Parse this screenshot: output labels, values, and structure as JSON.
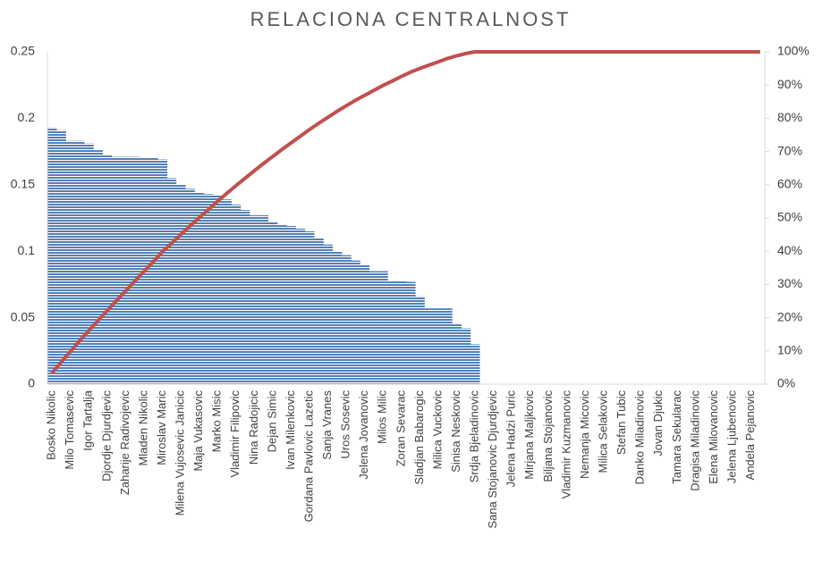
{
  "chart_data": {
    "type": "pareto",
    "title": "RELACIONA CENTRALNOST",
    "categories": [
      "Bosko Nikolic",
      null,
      "Milo Tomasevic",
      null,
      "Igor Tartalja",
      null,
      "Djordje Djurdjevic",
      null,
      "Zaharije Radivojevic",
      null,
      "Mladen Nikolic",
      null,
      "Miroslav Maric",
      null,
      "Milena Vujosevic Janicic",
      null,
      "Maja Vukasovic",
      null,
      "Marko Misic",
      null,
      "Vladimir Filipovic",
      null,
      "Nina Radojicic",
      null,
      "Dejan Simic",
      null,
      "Ivan Milenkovic",
      null,
      "Gordana Pavlovic Lazetic",
      null,
      "Sanja Vranes",
      null,
      "Uros Sosevic",
      null,
      "Jelena Jovanovic",
      null,
      "Milos Milic",
      null,
      "Zoran Sevarac",
      null,
      "Sladjan Babarogic",
      null,
      "Milica Vuckovic",
      null,
      "Sinisa Neskovic",
      null,
      "Srdja Bjeladinovic",
      null,
      "Sana Stojanovic Djurdjevic",
      null,
      "Jelena Hadzi Puric",
      null,
      "Mirjana Maljkovic",
      null,
      "Biljana Stojanovic",
      null,
      "Vladimir Kuzmanovic",
      null,
      "Nemanja Micovic",
      null,
      "Milica Selakovic",
      null,
      "Stefan Tubic",
      null,
      "Danko Miladinovic",
      null,
      "Jovan Djukic",
      null,
      "Tamara Sekularac",
      null,
      "Dragisa Miladinovic",
      null,
      "Elena Milovanovic",
      null,
      "Jelena Ljubenovic",
      null,
      "Andela Pejanovic",
      null
    ],
    "series": [
      {
        "color": "#4f81bd",
        "values": [
          0.193,
          0.191,
          0.183,
          0.183,
          0.181,
          0.176,
          0.172,
          0.171,
          0.171,
          0.171,
          0.17,
          0.17,
          0.169,
          0.155,
          0.15,
          0.147,
          0.144,
          0.143,
          0.142,
          0.139,
          0.135,
          0.131,
          0.127,
          0.127,
          0.122,
          0.12,
          0.119,
          0.117,
          0.115,
          0.11,
          0.105,
          0.1,
          0.097,
          0.093,
          0.09,
          0.085,
          0.085,
          0.078,
          0.078,
          0.077,
          0.066,
          0.057,
          0.057,
          0.057,
          0.045,
          0.042,
          0.03,
          0,
          0,
          0,
          0,
          0,
          0,
          0,
          0,
          0,
          0,
          0,
          0,
          0,
          0,
          0,
          0,
          0,
          0,
          0,
          0,
          0,
          0,
          0,
          0,
          0,
          0,
          0,
          0,
          0,
          0,
          0
        ]
      },
      {
        "color": "#c0504d",
        "axis": "y2",
        "values": [
          3.3,
          6.6,
          9.8,
          13.0,
          16.1,
          19.1,
          22.1,
          25.1,
          28.0,
          31.0,
          33.9,
          36.8,
          39.8,
          42.4,
          45.0,
          47.6,
          50.1,
          52.5,
          55.0,
          57.4,
          59.7,
          62.0,
          64.2,
          66.4,
          68.5,
          70.6,
          72.6,
          74.6,
          76.6,
          78.5,
          80.3,
          82.1,
          83.8,
          85.4,
          86.9,
          88.4,
          89.9,
          91.2,
          92.6,
          93.9,
          95.0,
          96.0,
          97.0,
          98.0,
          98.8,
          99.5,
          100,
          100,
          100,
          100,
          100,
          100,
          100,
          100,
          100,
          100,
          100,
          100,
          100,
          100,
          100,
          100,
          100,
          100,
          100,
          100,
          100,
          100,
          100,
          100,
          100,
          100,
          100,
          100,
          100,
          100,
          100,
          100
        ]
      }
    ],
    "ylim": [
      0,
      0.25
    ],
    "yticks": [
      0,
      0.05,
      0.1,
      0.15,
      0.2,
      0.25
    ],
    "y2lim": [
      0,
      100
    ],
    "y2ticks": [
      {
        "value": 0,
        "label": "0%"
      },
      {
        "value": 10,
        "label": "10%"
      },
      {
        "value": 20,
        "label": "20%"
      },
      {
        "value": 30,
        "label": "30%"
      },
      {
        "value": 40,
        "label": "40%"
      },
      {
        "value": 50,
        "label": "50%"
      },
      {
        "value": 60,
        "label": "60%"
      },
      {
        "value": 70,
        "label": "70%"
      },
      {
        "value": 80,
        "label": "80%"
      },
      {
        "value": 90,
        "label": "90%"
      },
      {
        "value": 100,
        "label": "100%"
      }
    ]
  }
}
